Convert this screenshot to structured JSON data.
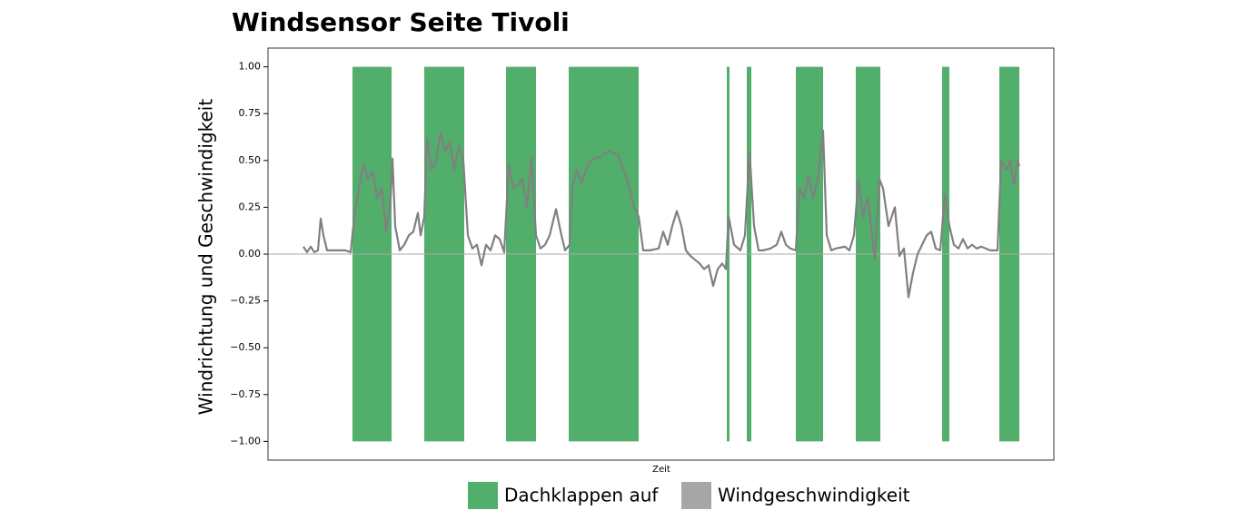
{
  "chart_data": {
    "type": "line_with_spans",
    "title": "Windsensor Seite Tivoli",
    "x_label": "Zeit",
    "y_label": "Windrichtung und Geschwindigkeit",
    "xlim": [
      0,
      865
    ],
    "ylim": [
      -1.1,
      1.1
    ],
    "yticks": [
      {
        "value": 1,
        "label": "1.00"
      },
      {
        "value": 0.75,
        "label": "0.75"
      },
      {
        "value": 0.5,
        "label": "0.50"
      },
      {
        "value": 0.25,
        "label": "0.25"
      },
      {
        "value": 0,
        "label": "0.00"
      },
      {
        "value": -0.25,
        "label": "−0.25"
      },
      {
        "value": -0.5,
        "label": "−0.50"
      },
      {
        "value": -0.75,
        "label": "−0.75"
      },
      {
        "value": -1,
        "label": "−1.00"
      }
    ],
    "series": [
      {
        "name": "Dachklappen auf",
        "color": "#52ae6b",
        "y_range": [
          -1,
          1
        ],
        "intervals": [
          [
            93,
            136
          ],
          [
            172,
            216
          ],
          [
            262,
            295
          ],
          [
            331,
            408
          ],
          [
            505,
            508
          ],
          [
            527,
            532
          ],
          [
            581,
            611
          ],
          [
            647,
            674
          ],
          [
            742,
            750
          ],
          [
            805,
            827
          ]
        ]
      },
      {
        "name": "Windgeschwindigkeit",
        "color": "#808080",
        "x": [
          39,
          43,
          47,
          51,
          55,
          58,
          61,
          65,
          75,
          85,
          91,
          95,
          100,
          105,
          110,
          115,
          120,
          125,
          130,
          135,
          137,
          140,
          145,
          150,
          155,
          160,
          165,
          168,
          172,
          175,
          180,
          185,
          190,
          195,
          200,
          205,
          210,
          215,
          220,
          225,
          230,
          235,
          240,
          245,
          250,
          255,
          260,
          265,
          270,
          275,
          280,
          285,
          290,
          295,
          300,
          305,
          310,
          317,
          323,
          327,
          332,
          335,
          340,
          345,
          350,
          355,
          365,
          375,
          385,
          395,
          403,
          408,
          413,
          420,
          430,
          435,
          440,
          445,
          450,
          455,
          460,
          465,
          470,
          475,
          480,
          485,
          490,
          495,
          500,
          504,
          507,
          513,
          520,
          525,
          530,
          535,
          540,
          545,
          553,
          560,
          565,
          570,
          575,
          581,
          585,
          590,
          595,
          600,
          605,
          611,
          615,
          620,
          625,
          635,
          640,
          645,
          650,
          655,
          660,
          665,
          668,
          673,
          677,
          683,
          690,
          695,
          700,
          705,
          710,
          715,
          720,
          725,
          730,
          735,
          740,
          745,
          750,
          755,
          760,
          765,
          770,
          775,
          780,
          785,
          795,
          803,
          807,
          813,
          817,
          821,
          825,
          827
        ],
        "values": [
          0.04,
          0.01,
          0.04,
          0.01,
          0.02,
          0.19,
          0.1,
          0.02,
          0.02,
          0.02,
          0.01,
          0.2,
          0.35,
          0.48,
          0.4,
          0.44,
          0.3,
          0.35,
          0.12,
          0.3,
          0.51,
          0.15,
          0.02,
          0.05,
          0.1,
          0.12,
          0.22,
          0.1,
          0.2,
          0.62,
          0.45,
          0.5,
          0.65,
          0.55,
          0.6,
          0.45,
          0.58,
          0.5,
          0.1,
          0.03,
          0.05,
          -0.06,
          0.05,
          0.02,
          0.1,
          0.08,
          0.01,
          0.48,
          0.35,
          0.37,
          0.4,
          0.25,
          0.52,
          0.1,
          0.03,
          0.05,
          0.1,
          0.24,
          0.1,
          0.02,
          0.05,
          0.35,
          0.45,
          0.38,
          0.45,
          0.5,
          0.52,
          0.55,
          0.53,
          0.4,
          0.25,
          0.2,
          0.02,
          0.02,
          0.03,
          0.12,
          0.05,
          0.15,
          0.23,
          0.15,
          0.02,
          -0.01,
          -0.03,
          -0.05,
          -0.08,
          -0.06,
          -0.17,
          -0.08,
          -0.05,
          -0.08,
          0.2,
          0.05,
          0.02,
          0.1,
          0.55,
          0.15,
          0.02,
          0.02,
          0.03,
          0.05,
          0.12,
          0.05,
          0.03,
          0.02,
          0.35,
          0.3,
          0.42,
          0.3,
          0.4,
          0.66,
          0.1,
          0.02,
          0.03,
          0.04,
          0.02,
          0.1,
          0.4,
          0.2,
          0.3,
          0.1,
          -0.03,
          0.4,
          0.35,
          0.15,
          0.25,
          -0.01,
          0.03,
          -0.23,
          -0.1,
          0.0,
          0.05,
          0.1,
          0.12,
          0.03,
          0.02,
          0.32,
          0.15,
          0.05,
          0.03,
          0.08,
          0.03,
          0.05,
          0.03,
          0.04,
          0.02,
          0.02,
          0.5,
          0.45,
          0.5,
          0.37,
          0.5,
          0.47
        ]
      }
    ],
    "legend": "bottom"
  }
}
